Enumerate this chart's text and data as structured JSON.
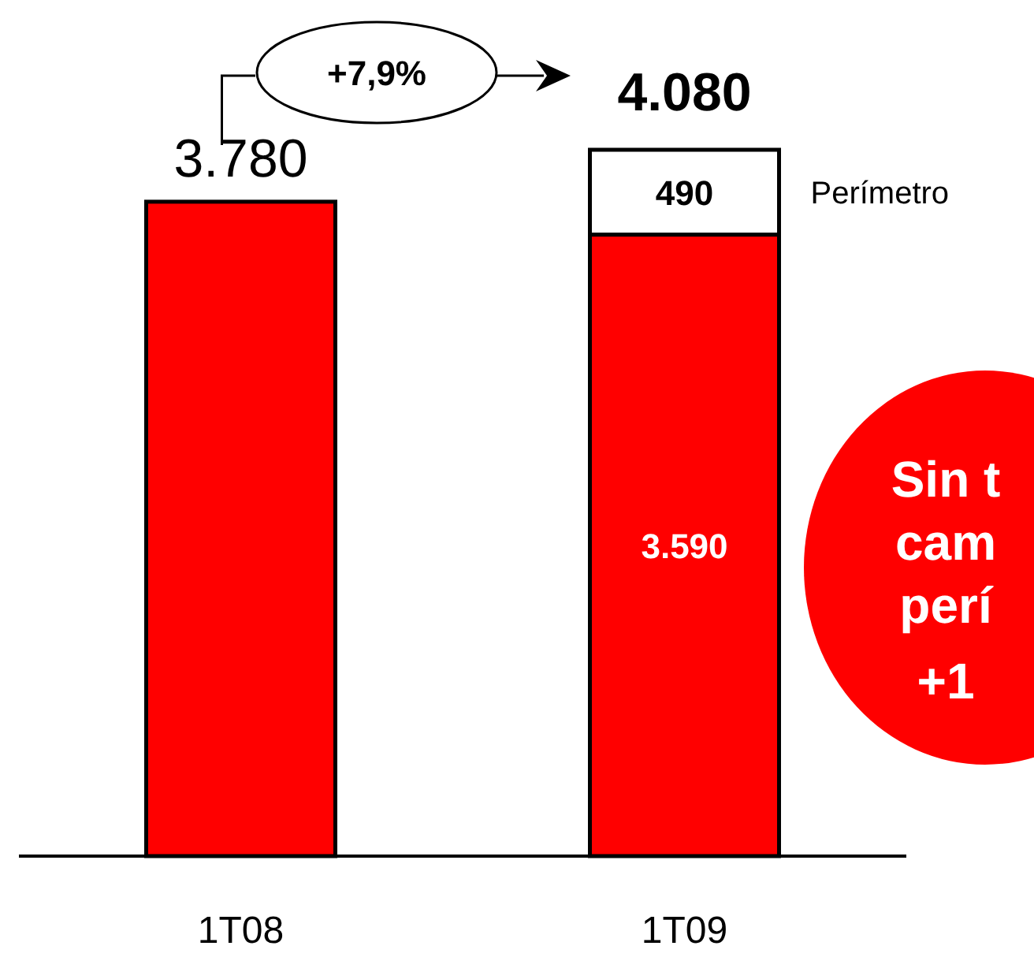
{
  "chart_data": {
    "type": "bar",
    "stacked": true,
    "categories": [
      "1T08",
      "1T09"
    ],
    "series": [
      {
        "color": "#ff0000",
        "values": [
          3780,
          3590
        ],
        "value_labels": [
          "3.780",
          "3.590"
        ]
      },
      {
        "name": "Perímetro",
        "color": "#ffffff",
        "values": [
          null,
          490
        ],
        "value_labels": [
          null,
          "490"
        ]
      }
    ],
    "totals": [
      null,
      "4.080"
    ],
    "annotations": [
      "+7,9%",
      "Sin t",
      "cam",
      "perí",
      "+1"
    ],
    "legend": false
  }
}
